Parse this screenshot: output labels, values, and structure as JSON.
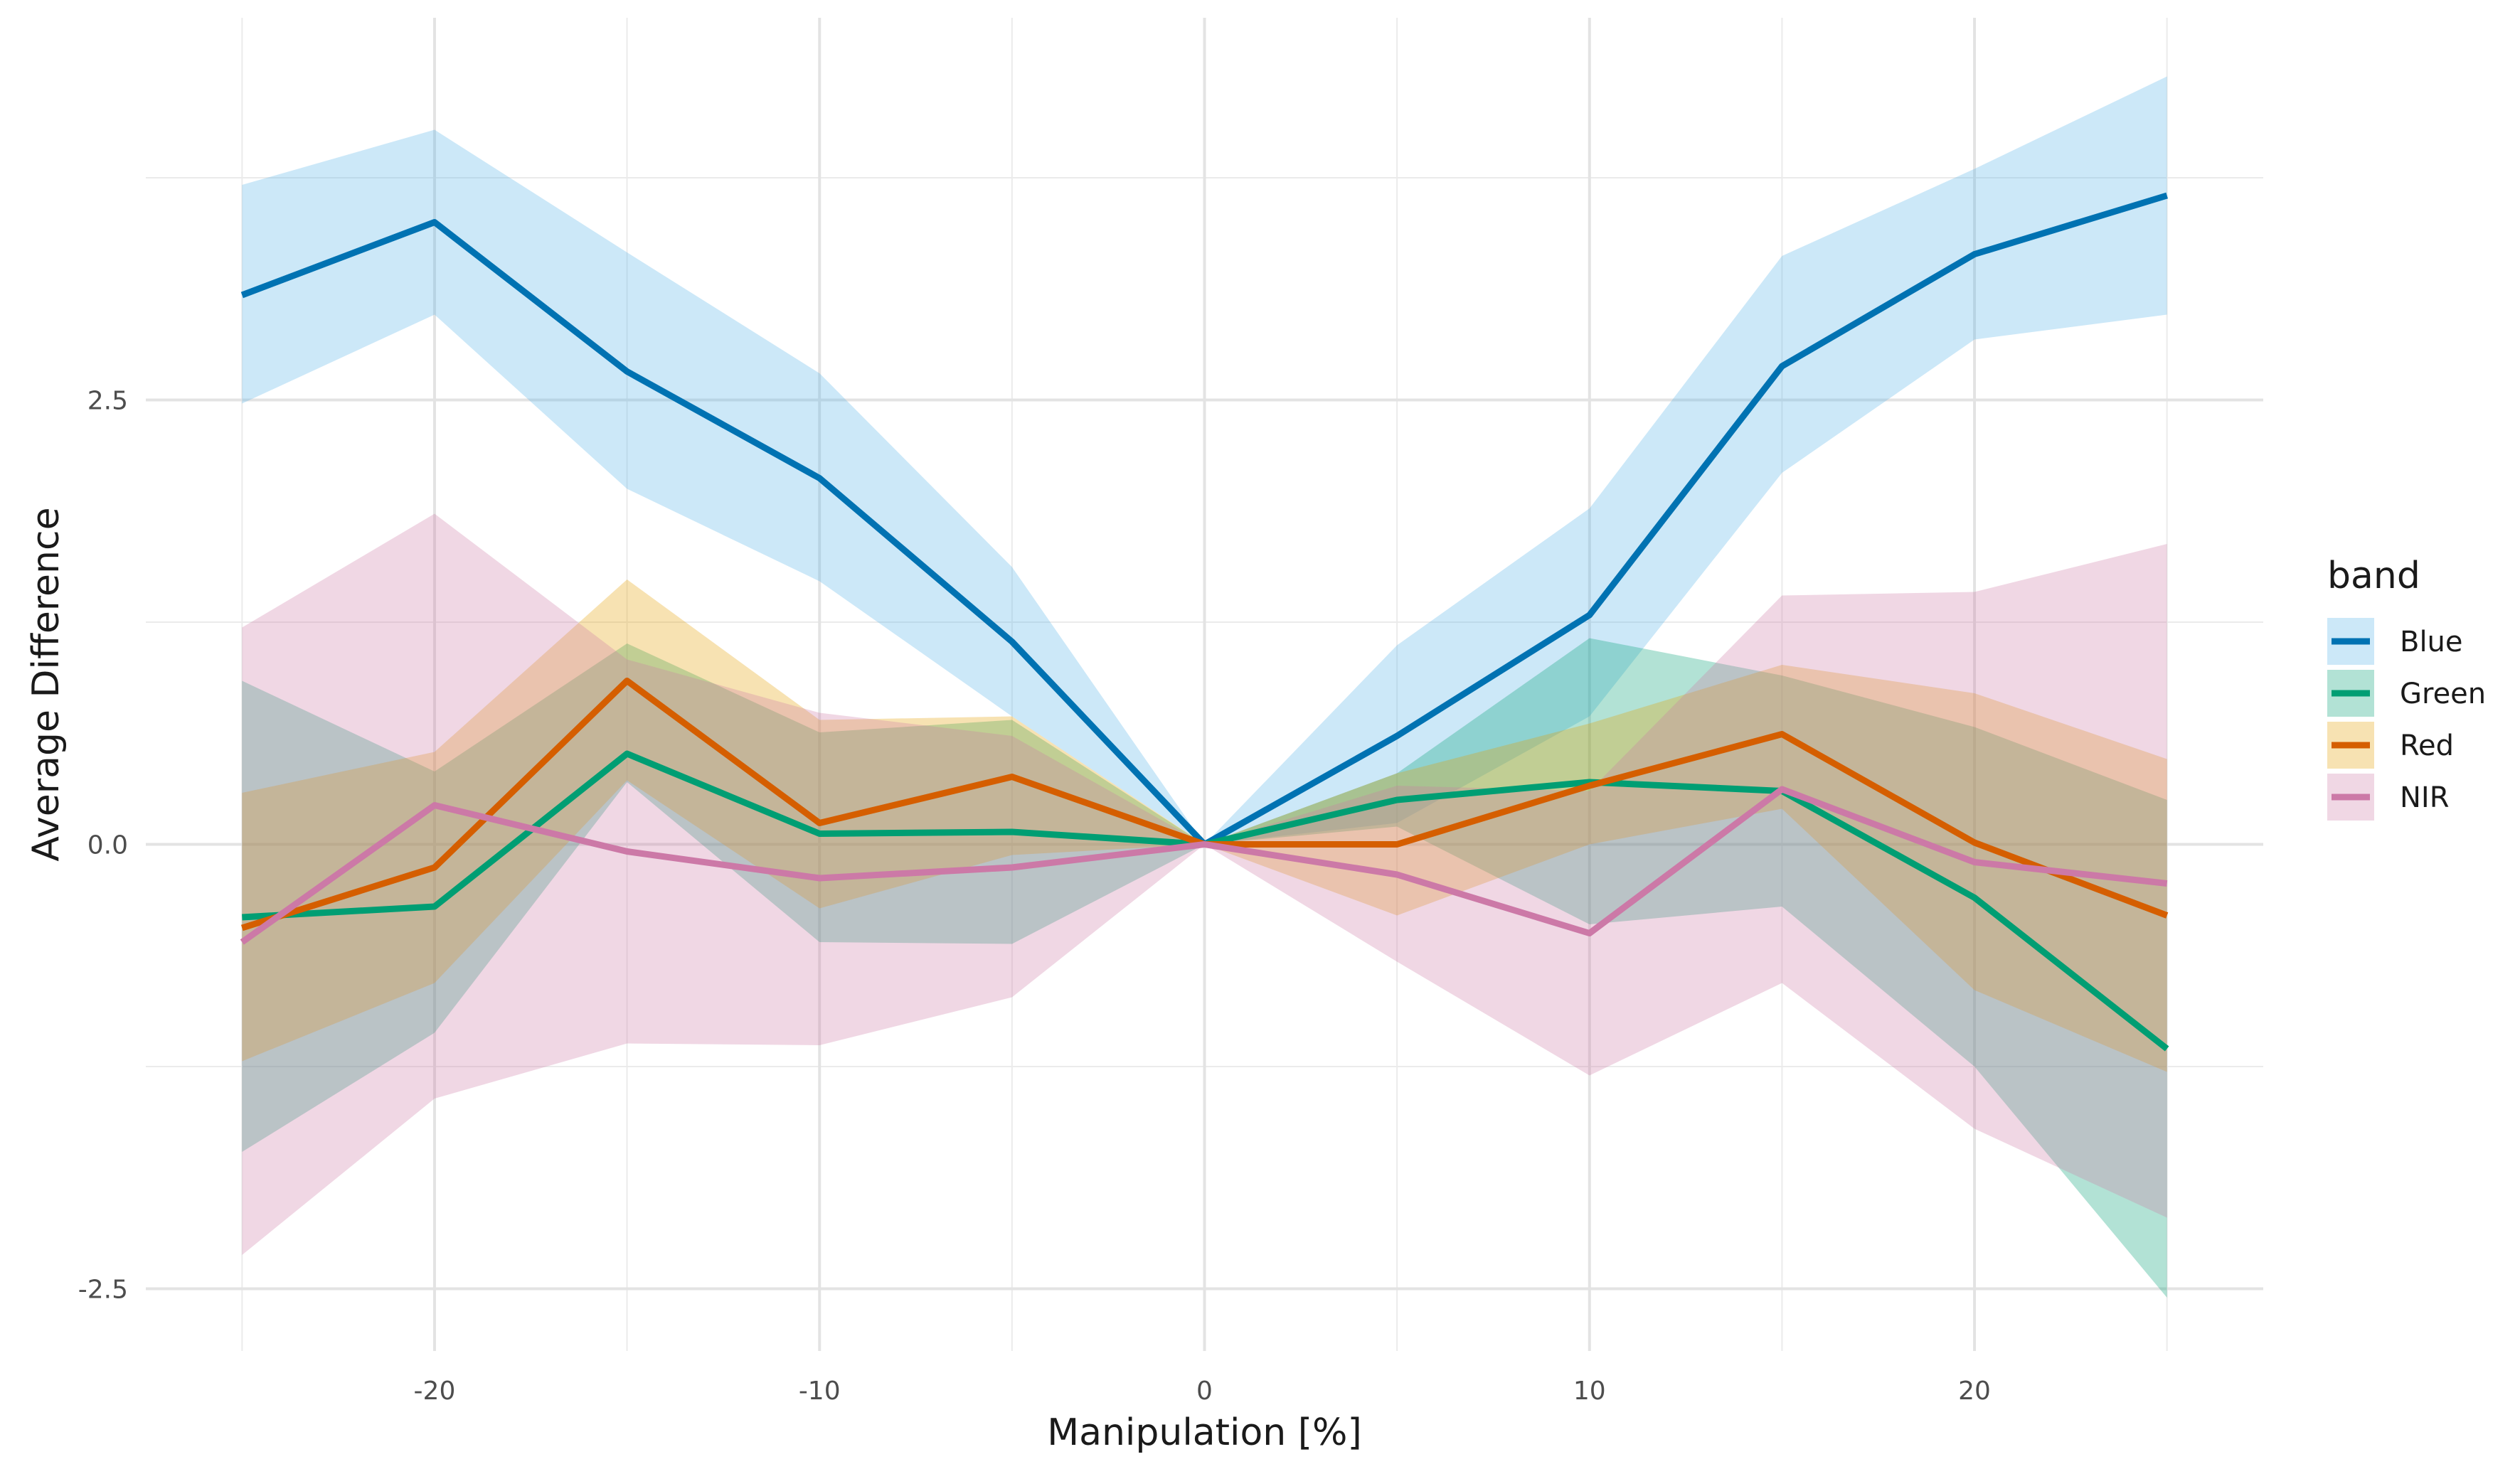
{
  "chart_data": {
    "type": "line",
    "title": "",
    "xlabel": "Manipulation [%]",
    "ylabel": "Average Difference",
    "x": [
      -25,
      -20,
      -15,
      -10,
      -5,
      0,
      5,
      10,
      15,
      20,
      25
    ],
    "xlim": [
      -27.5,
      27.5
    ],
    "ylim": [
      -2.85,
      4.65
    ],
    "x_ticks": [
      -20,
      -10,
      0,
      10,
      20
    ],
    "y_ticks": [
      -2.5,
      0.0,
      2.5
    ],
    "x_tick_labels": [
      "-20",
      "-10",
      "0",
      "10",
      "20"
    ],
    "y_tick_labels": [
      "-2.5",
      "0.0",
      "2.5"
    ],
    "grid": true,
    "legend_position": "right",
    "legend_title": "band",
    "series": [
      {
        "name": "Blue",
        "color": "#0072B2",
        "fill_color": "#56B4E9",
        "values": [
          3.09,
          3.5,
          2.66,
          2.06,
          1.14,
          0.0,
          0.61,
          1.29,
          2.69,
          3.32,
          3.65
        ],
        "lower": [
          2.48,
          2.98,
          2.0,
          1.48,
          0.72,
          0.0,
          0.12,
          0.72,
          2.09,
          2.84,
          2.98
        ],
        "upper": [
          3.71,
          4.02,
          3.33,
          2.65,
          1.56,
          0.0,
          1.12,
          1.89,
          3.31,
          3.8,
          4.32
        ]
      },
      {
        "name": "Green",
        "color": "#009E73",
        "fill_color": "#009E73",
        "values": [
          -0.41,
          -0.35,
          0.51,
          0.06,
          0.07,
          0.0,
          0.25,
          0.35,
          0.3,
          -0.3,
          -1.15
        ],
        "lower": [
          -1.73,
          -1.06,
          0.35,
          -0.55,
          -0.56,
          0.0,
          0.1,
          -0.45,
          -0.35,
          -1.25,
          -2.55
        ],
        "upper": [
          0.92,
          0.41,
          1.13,
          0.63,
          0.7,
          0.0,
          0.4,
          1.16,
          0.95,
          0.66,
          0.25
        ]
      },
      {
        "name": "Red",
        "color": "#D55E00",
        "fill_color": "#E69F00",
        "values": [
          -0.47,
          -0.13,
          0.92,
          0.12,
          0.38,
          0.0,
          0.0,
          0.33,
          0.62,
          0.01,
          -0.4
        ],
        "lower": [
          -1.22,
          -0.78,
          0.36,
          -0.36,
          -0.06,
          0.0,
          -0.4,
          0.0,
          0.2,
          -0.82,
          -1.28
        ],
        "upper": [
          0.29,
          0.52,
          1.49,
          0.7,
          0.72,
          0.0,
          0.4,
          0.68,
          1.01,
          0.85,
          0.48
        ]
      },
      {
        "name": "NIR",
        "color": "#CC79A7",
        "fill_color": "#CC79A7",
        "values": [
          -0.55,
          0.22,
          -0.04,
          -0.19,
          -0.13,
          0.0,
          -0.17,
          -0.5,
          0.31,
          -0.1,
          -0.22
        ],
        "lower": [
          -2.31,
          -1.43,
          -1.12,
          -1.13,
          -0.86,
          0.0,
          -0.66,
          -1.3,
          -0.78,
          -1.6,
          -2.1
        ],
        "upper": [
          1.22,
          1.86,
          1.04,
          0.74,
          0.61,
          0.0,
          0.33,
          0.3,
          1.4,
          1.42,
          1.69
        ]
      }
    ]
  }
}
